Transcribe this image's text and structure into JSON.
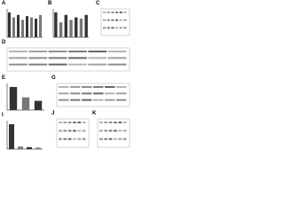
{
  "panels": [
    {
      "label": "A",
      "bars": [
        1,
        0.8,
        0.9,
        0.7,
        0.85,
        0.8,
        0.75,
        0.9
      ]
    },
    {
      "label": "B",
      "bars": [
        1,
        0.6,
        0.9,
        0.7,
        0.8,
        0.75,
        0.9
      ]
    },
    {
      "label": "C"
    },
    {
      "label": "D"
    },
    {
      "label": "E",
      "bars": [
        1,
        0.55,
        0.4
      ]
    },
    {
      "label": "G"
    },
    {
      "label": "I",
      "bars": [
        1,
        0.1,
        0.08,
        0.06
      ]
    },
    {
      "label": "J"
    },
    {
      "label": "K"
    }
  ]
}
